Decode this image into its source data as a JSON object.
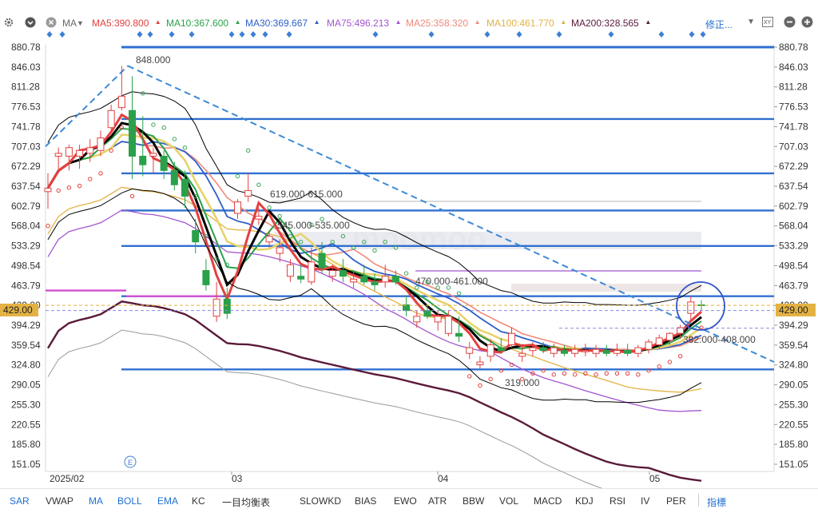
{
  "top": {
    "ma_selector": "MA",
    "ma_items": [
      {
        "label": "MA5:390.800",
        "color": "#e3403f"
      },
      {
        "label": "MA10:367.600",
        "color": "#2aa04a"
      },
      {
        "label": "MA30:369.667",
        "color": "#2d5fc9"
      },
      {
        "label": "MA75:496.213",
        "color": "#a455d0"
      },
      {
        "label": "MA25:358.320",
        "color": "#ef8a7a"
      },
      {
        "label": "MA100:461.770",
        "color": "#e3b243"
      },
      {
        "label": "MA200:328.565",
        "color": "#5a1a3a"
      }
    ],
    "adjust_label": "修正..."
  },
  "price_axis": {
    "ticks": [
      "880.78",
      "846.03",
      "811.28",
      "776.53",
      "741.78",
      "707.03",
      "672.29",
      "637.54",
      "602.79",
      "568.04",
      "533.29",
      "498.54",
      "463.79",
      "429.00",
      "394.29",
      "359.54",
      "324.80",
      "290.05",
      "255.30",
      "220.55",
      "185.80",
      "151.05"
    ],
    "current_price": "429.00",
    "current_price_color": "#e3b243"
  },
  "time_axis": {
    "labels": [
      "2025/02",
      "03",
      "04",
      "05"
    ]
  },
  "annotations": {
    "high_label": "848.000",
    "low_label": "319.000",
    "zone_1": "619.000-615.000",
    "zone_2": "545.000-535.000",
    "zone_3": "470.000-461.000",
    "zone_4": "382.000-408.000",
    "event_marker": "E",
    "watermark": "moomoo"
  },
  "bottom": {
    "indicators": [
      "SAR",
      "VWAP",
      "MA",
      "BOLL",
      "EMA",
      "KC",
      "一目均衡表",
      "SLOWKD",
      "BIAS",
      "EWO",
      "ATR",
      "BBW",
      "VOL",
      "MACD",
      "KDJ",
      "RSI",
      "IV",
      "PER",
      "指標"
    ],
    "active": [
      "SAR",
      "MA",
      "BOLL",
      "EMA"
    ]
  },
  "colors": {
    "up": "#e3403f",
    "down": "#2aa04a",
    "hline": "#2f6fd0",
    "ma5": "#e3403f",
    "ma10": "#2aa04a",
    "ma30": "#2d5fc9",
    "ma25": "#ef8a7a",
    "ma75": "#a455d0",
    "ma100": "#e3b243",
    "ma200": "#5a1a3a",
    "ema": "#000000",
    "boll": "#000000",
    "sar": "#3aa55a",
    "trend": "#3d8ad6"
  },
  "chart_data": {
    "type": "candlestick",
    "ylim": [
      151.05,
      880.78
    ],
    "ohlc": [
      {
        "o": 628,
        "h": 660,
        "l": 598,
        "c": 634
      },
      {
        "o": 690,
        "h": 705,
        "l": 660,
        "c": 695
      },
      {
        "o": 690,
        "h": 710,
        "l": 665,
        "c": 705
      },
      {
        "o": 690,
        "h": 710,
        "l": 668,
        "c": 700
      },
      {
        "o": 695,
        "h": 720,
        "l": 680,
        "c": 705
      },
      {
        "o": 700,
        "h": 735,
        "l": 690,
        "c": 722
      },
      {
        "o": 740,
        "h": 780,
        "l": 730,
        "c": 770
      },
      {
        "o": 775,
        "h": 848,
        "l": 770,
        "c": 795
      },
      {
        "o": 770,
        "h": 830,
        "l": 650,
        "c": 690
      },
      {
        "o": 690,
        "h": 760,
        "l": 655,
        "c": 675
      },
      {
        "o": 690,
        "h": 705,
        "l": 660,
        "c": 695
      },
      {
        "o": 690,
        "h": 700,
        "l": 650,
        "c": 665
      },
      {
        "o": 665,
        "h": 680,
        "l": 630,
        "c": 640
      },
      {
        "o": 650,
        "h": 665,
        "l": 600,
        "c": 620
      },
      {
        "o": 560,
        "h": 580,
        "l": 520,
        "c": 540
      },
      {
        "o": 490,
        "h": 510,
        "l": 455,
        "c": 465
      },
      {
        "o": 410,
        "h": 470,
        "l": 400,
        "c": 440
      },
      {
        "o": 440,
        "h": 460,
        "l": 405,
        "c": 415
      },
      {
        "o": 590,
        "h": 615,
        "l": 580,
        "c": 610
      },
      {
        "o": 620,
        "h": 660,
        "l": 610,
        "c": 630
      },
      {
        "o": 580,
        "h": 600,
        "l": 570,
        "c": 585
      },
      {
        "o": 540,
        "h": 560,
        "l": 530,
        "c": 550
      },
      {
        "o": 520,
        "h": 545,
        "l": 505,
        "c": 530
      },
      {
        "o": 480,
        "h": 510,
        "l": 470,
        "c": 500
      },
      {
        "o": 480,
        "h": 500,
        "l": 468,
        "c": 475
      },
      {
        "o": 470,
        "h": 530,
        "l": 465,
        "c": 505
      },
      {
        "o": 520,
        "h": 540,
        "l": 485,
        "c": 495
      },
      {
        "o": 480,
        "h": 500,
        "l": 470,
        "c": 490
      },
      {
        "o": 490,
        "h": 510,
        "l": 470,
        "c": 480
      },
      {
        "o": 470,
        "h": 490,
        "l": 460,
        "c": 475
      },
      {
        "o": 480,
        "h": 500,
        "l": 465,
        "c": 470
      },
      {
        "o": 470,
        "h": 485,
        "l": 455,
        "c": 465
      },
      {
        "o": 470,
        "h": 500,
        "l": 460,
        "c": 480
      },
      {
        "o": 480,
        "h": 490,
        "l": 465,
        "c": 470
      },
      {
        "o": 430,
        "h": 445,
        "l": 410,
        "c": 420
      },
      {
        "o": 400,
        "h": 420,
        "l": 390,
        "c": 410
      },
      {
        "o": 420,
        "h": 430,
        "l": 405,
        "c": 410
      },
      {
        "o": 400,
        "h": 420,
        "l": 385,
        "c": 410
      },
      {
        "o": 380,
        "h": 420,
        "l": 375,
        "c": 410
      },
      {
        "o": 380,
        "h": 410,
        "l": 365,
        "c": 375
      },
      {
        "o": 345,
        "h": 365,
        "l": 335,
        "c": 355
      },
      {
        "o": 325,
        "h": 340,
        "l": 319,
        "c": 330
      },
      {
        "o": 340,
        "h": 370,
        "l": 330,
        "c": 360
      },
      {
        "o": 355,
        "h": 372,
        "l": 345,
        "c": 350
      },
      {
        "o": 360,
        "h": 390,
        "l": 355,
        "c": 380
      },
      {
        "o": 340,
        "h": 360,
        "l": 330,
        "c": 345
      },
      {
        "o": 350,
        "h": 365,
        "l": 340,
        "c": 355
      },
      {
        "o": 355,
        "h": 365,
        "l": 345,
        "c": 350
      },
      {
        "o": 345,
        "h": 362,
        "l": 338,
        "c": 355
      },
      {
        "o": 350,
        "h": 360,
        "l": 340,
        "c": 345
      },
      {
        "o": 345,
        "h": 360,
        "l": 338,
        "c": 352
      },
      {
        "o": 348,
        "h": 362,
        "l": 340,
        "c": 350
      },
      {
        "o": 345,
        "h": 360,
        "l": 338,
        "c": 352
      },
      {
        "o": 350,
        "h": 360,
        "l": 340,
        "c": 345
      },
      {
        "o": 345,
        "h": 362,
        "l": 340,
        "c": 350
      },
      {
        "o": 350,
        "h": 362,
        "l": 340,
        "c": 345
      },
      {
        "o": 345,
        "h": 360,
        "l": 338,
        "c": 355
      },
      {
        "o": 352,
        "h": 370,
        "l": 345,
        "c": 365
      },
      {
        "o": 360,
        "h": 378,
        "l": 352,
        "c": 372
      },
      {
        "o": 368,
        "h": 382,
        "l": 360,
        "c": 380
      },
      {
        "o": 380,
        "h": 395,
        "l": 370,
        "c": 390
      },
      {
        "o": 415,
        "h": 445,
        "l": 400,
        "c": 435
      },
      {
        "o": 430,
        "h": 438,
        "l": 420,
        "c": 429
      }
    ],
    "hlines": [
      880.78,
      755,
      660,
      595,
      533,
      445,
      317
    ],
    "ma_values": {
      "MA5": 390.8,
      "MA10": 367.6,
      "MA30": 369.667,
      "MA75": 496.213,
      "MA25": 358.32,
      "MA100": 461.77,
      "MA200": 328.565
    }
  }
}
